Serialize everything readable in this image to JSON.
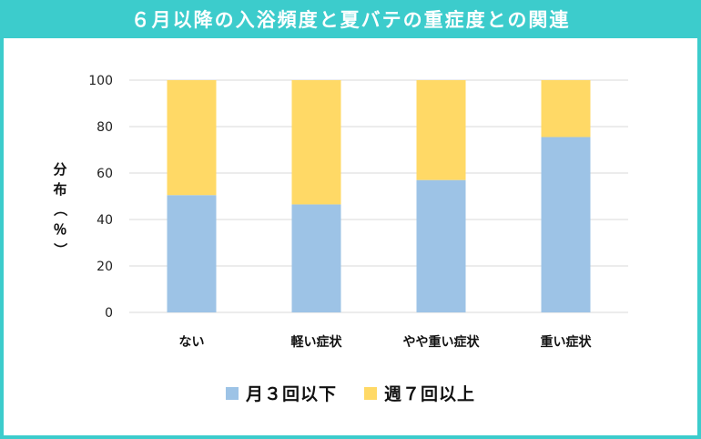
{
  "colors": {
    "frame": "#3ccccc",
    "series_low": "#9dc3e6",
    "series_high": "#ffd966",
    "grid": "#d9d9d9"
  },
  "chart_data": {
    "type": "bar",
    "stacked": true,
    "title": "６月以降の入浴頻度と夏バテの重症度との関連",
    "ylabel": "分布（％）",
    "xlabel": "",
    "ylim": [
      0,
      100
    ],
    "yticks": [
      "0",
      "20",
      "40",
      "60",
      "80",
      "100"
    ],
    "grid": true,
    "legend_position": "bottom",
    "categories": [
      "ない",
      "軽い症状",
      "やや重い症状",
      "重い症状"
    ],
    "series": [
      {
        "name": "月３回以下",
        "values": [
          50.5,
          46.5,
          57,
          75.5
        ]
      },
      {
        "name": "週７回以上",
        "values": [
          49.5,
          53.5,
          43,
          24.5
        ]
      }
    ]
  }
}
